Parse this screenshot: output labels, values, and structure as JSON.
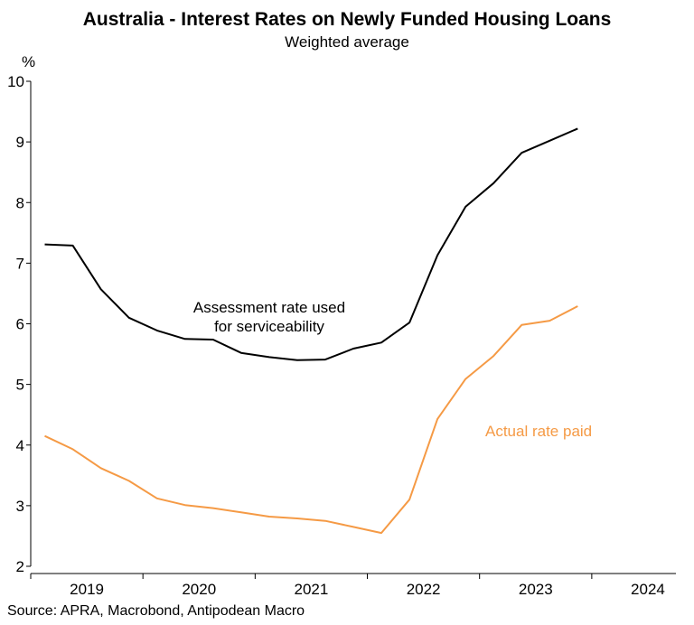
{
  "chart_data": {
    "type": "line",
    "title": "Australia - Interest Rates on Newly Funded Housing Loans",
    "subtitle": "Weighted average",
    "ylabel": "%",
    "xlabel": "",
    "ylim": [
      2,
      10
    ],
    "yticks": [
      "2",
      "3",
      "4",
      "5",
      "6",
      "7",
      "8",
      "9",
      "10"
    ],
    "xlim": [
      2018.5,
      2024.25
    ],
    "xticks": [
      {
        "label": "2019",
        "pos": 2019.0
      },
      {
        "label": "2020",
        "pos": 2020.0
      },
      {
        "label": "2021",
        "pos": 2021.0
      },
      {
        "label": "2022",
        "pos": 2022.0
      },
      {
        "label": "2023",
        "pos": 2023.0
      },
      {
        "label": "2024",
        "pos": 2024.0
      }
    ],
    "grid": false,
    "series": [
      {
        "name": "Assessment rate used for serviceability",
        "label_lines": [
          "Assessment rate used",
          "for serviceability"
        ],
        "color": "#000000",
        "x": [
          2018.625,
          2018.875,
          2019.125,
          2019.375,
          2019.625,
          2019.875,
          2020.125,
          2020.375,
          2020.625,
          2020.875,
          2021.125,
          2021.375,
          2021.625,
          2021.875,
          2022.125,
          2022.375,
          2022.625,
          2022.875,
          2023.125,
          2023.375
        ],
        "y": [
          7.31,
          7.29,
          6.57,
          6.1,
          5.89,
          5.75,
          5.74,
          5.52,
          5.45,
          5.4,
          5.41,
          5.59,
          5.69,
          6.02,
          7.13,
          7.93,
          8.32,
          8.82,
          9.02,
          9.22
        ]
      },
      {
        "name": "Actual rate paid",
        "label_lines": [
          "Actual rate paid"
        ],
        "color": "#f59a45",
        "x": [
          2018.625,
          2018.875,
          2019.125,
          2019.375,
          2019.625,
          2019.875,
          2020.125,
          2020.375,
          2020.625,
          2020.875,
          2021.125,
          2021.375,
          2021.625,
          2021.875,
          2022.125,
          2022.375,
          2022.625,
          2022.875,
          2023.125,
          2023.375
        ],
        "y": [
          4.15,
          3.93,
          3.62,
          3.41,
          3.12,
          3.01,
          2.96,
          2.89,
          2.82,
          2.79,
          2.75,
          2.65,
          2.55,
          3.1,
          4.43,
          5.09,
          5.47,
          5.98,
          6.05,
          6.29
        ]
      }
    ]
  },
  "source": "Source: APRA, Macrobond, Antipodean Macro"
}
